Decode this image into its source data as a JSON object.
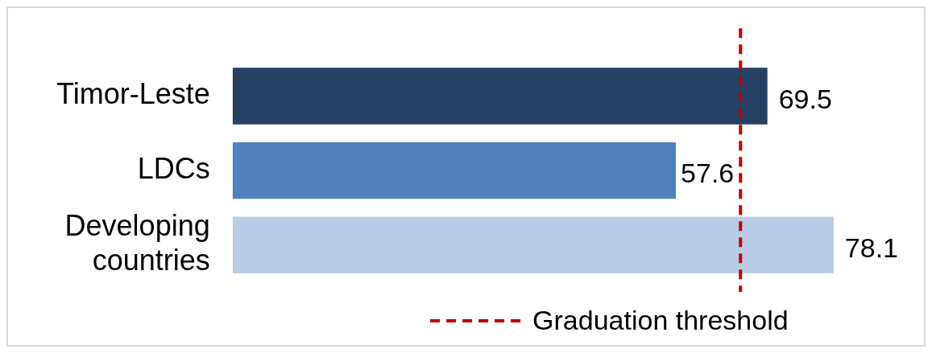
{
  "chart_data": {
    "type": "bar",
    "orientation": "horizontal",
    "categories": [
      "Timor-Leste",
      "LDCs",
      "Developing countries"
    ],
    "values": [
      69.5,
      57.6,
      78.1
    ],
    "colors": [
      "#264161",
      "#4f81bd",
      "#b9cde5"
    ],
    "data_labels": true,
    "ref_lines": [
      {
        "axis": "x",
        "value": 66,
        "label": "Graduation threshold",
        "color": "#c00000",
        "line_style": "dashed"
      }
    ],
    "legend": "bottom"
  }
}
